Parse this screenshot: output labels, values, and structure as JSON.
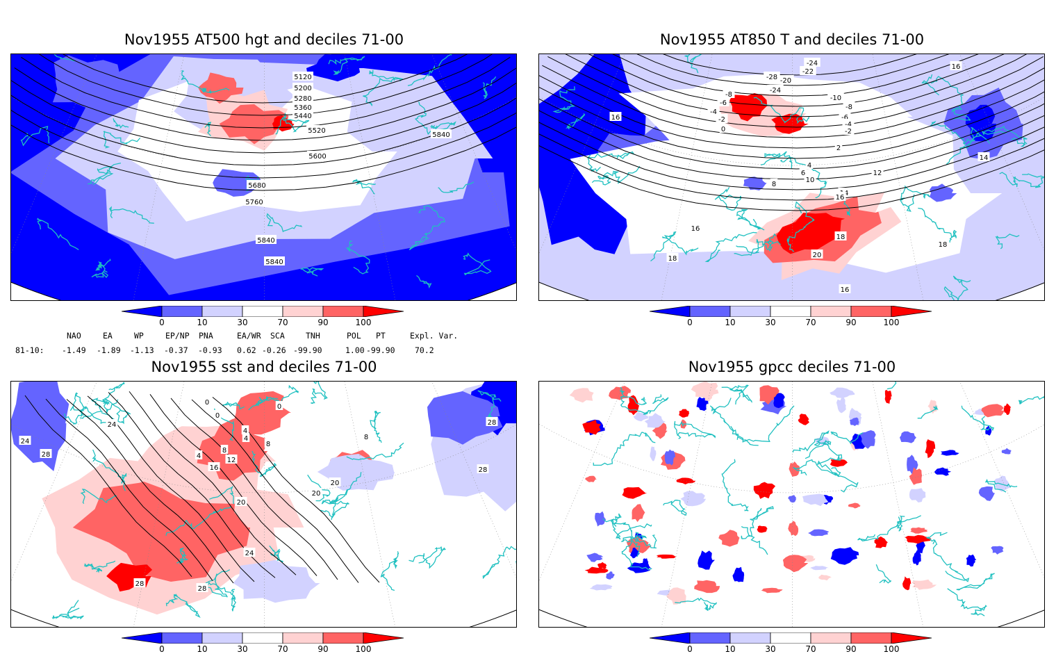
{
  "panels": [
    {
      "title": "Nov1955 AT500 hgt and deciles 71-00",
      "contour_labels": [
        "5120",
        "5200",
        "5280",
        "5360",
        "5440",
        "5520",
        "5600",
        "5680",
        "5760",
        "5840",
        "5840",
        "5840"
      ]
    },
    {
      "title": "Nov1955 AT850 T and deciles 71-00",
      "contour_labels": [
        "-24",
        "-22",
        "-20",
        "-28",
        "-24",
        "-8",
        "-6",
        "-4",
        "-2",
        "0",
        "2",
        "4",
        "6",
        "8",
        "10",
        "12",
        "14",
        "16",
        "18",
        "20",
        "16",
        "14",
        "16",
        "18",
        "-10",
        "-8",
        "-6",
        "-4",
        "-2",
        "16",
        "18",
        "16"
      ]
    },
    {
      "title": "Nov1955 sst and deciles 71-00",
      "contour_labels": [
        "0",
        "0",
        "0",
        "4",
        "4",
        "8",
        "12",
        "16",
        "20",
        "20",
        "24",
        "24",
        "28",
        "28",
        "28",
        "28",
        "4",
        "8",
        "20",
        "8",
        "28",
        "28",
        "24"
      ]
    },
    {
      "title": "Nov1955 gpcc deciles 71-00",
      "contour_labels": []
    }
  ],
  "colorbar": {
    "labels": [
      "0",
      "10",
      "30",
      "70",
      "90",
      "100"
    ],
    "colors": [
      "#0000ff",
      "#6464ff",
      "#d2d2ff",
      "#ffffff",
      "#ffd2d2",
      "#ff6464",
      "#ff0000"
    ]
  },
  "indices": {
    "header": [
      "NAO",
      "EA",
      "WP",
      "EP/NP",
      "PNA",
      "EA/WR",
      "SCA",
      "TNH",
      "POL",
      "PT",
      "Expl. Var."
    ],
    "row_label": "81-10:",
    "values": [
      "-1.49",
      "-1.89",
      "-1.13",
      "-0.37",
      "-0.93",
      "0.62",
      "-0.26",
      "-99.90",
      "1.00",
      "-99.90",
      "70.2"
    ]
  },
  "colors": {
    "coast": "#20c0c0",
    "contour": "#000000",
    "grid": "#888888"
  }
}
